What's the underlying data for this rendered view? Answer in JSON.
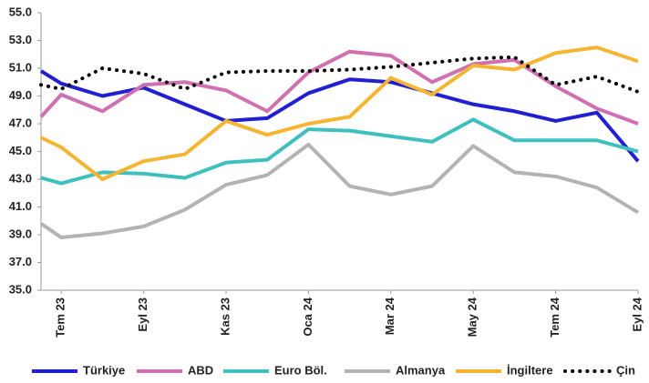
{
  "chart_data": {
    "type": "line",
    "categories": [
      null,
      "Tem 23",
      null,
      "Eyl 23",
      null,
      "Kas 23",
      null,
      "Oca 24",
      null,
      "Mar 24",
      null,
      "May 24",
      null,
      "Tem 24",
      null,
      "Eyl 24"
    ],
    "ylim": [
      35,
      55
    ],
    "yticks": [
      {
        "value": 35,
        "label": "35.0"
      },
      {
        "value": 37,
        "label": "37.0"
      },
      {
        "value": 39,
        "label": "39.0"
      },
      {
        "value": 41,
        "label": "41.0"
      },
      {
        "value": 43,
        "label": "43.0"
      },
      {
        "value": 45,
        "label": "45.0"
      },
      {
        "value": 47,
        "label": "47.0"
      },
      {
        "value": 49,
        "label": "49.0"
      },
      {
        "value": 51,
        "label": "51.0"
      },
      {
        "value": 53,
        "label": "53.0"
      },
      {
        "value": 55,
        "label": "55.0"
      }
    ],
    "legend": "bottom",
    "series": [
      {
        "name": "Türkiye",
        "color": "#2020d0",
        "style": "solid",
        "values": [
          50.8,
          49.9,
          49.0,
          49.6,
          48.4,
          47.2,
          47.4,
          49.2,
          50.2,
          50.0,
          49.2,
          48.4,
          47.9,
          47.2,
          47.8,
          44.3
        ]
      },
      {
        "name": "ABD",
        "color": "#d070b0",
        "style": "solid",
        "values": [
          47.5,
          49.1,
          47.9,
          49.8,
          50.0,
          49.4,
          47.9,
          50.7,
          52.2,
          51.9,
          50.0,
          51.3,
          51.6,
          49.7,
          48.1,
          47.0
        ]
      },
      {
        "name": "Euro Böl.",
        "color": "#40bfbf",
        "style": "solid",
        "values": [
          43.1,
          42.7,
          43.5,
          43.4,
          43.1,
          44.2,
          44.4,
          46.6,
          46.5,
          46.1,
          45.7,
          47.3,
          45.8,
          45.8,
          45.8,
          45.0
        ]
      },
      {
        "name": "Almanya",
        "color": "#b3b3b3",
        "style": "solid",
        "values": [
          39.8,
          38.8,
          39.1,
          39.6,
          40.8,
          42.6,
          43.3,
          45.5,
          42.5,
          41.9,
          42.5,
          45.4,
          43.5,
          43.2,
          42.4,
          40.6
        ]
      },
      {
        "name": "İngiltere",
        "color": "#f5b532",
        "style": "solid",
        "values": [
          46.0,
          45.3,
          43.0,
          44.3,
          44.8,
          47.2,
          46.2,
          47.0,
          47.5,
          50.3,
          49.1,
          51.2,
          50.9,
          52.1,
          52.5,
          51.5
        ]
      },
      {
        "name": "Çin",
        "color": "#000000",
        "style": "dotted",
        "values": [
          49.8,
          49.5,
          51.0,
          50.6,
          49.5,
          50.7,
          50.8,
          50.8,
          50.9,
          51.1,
          51.4,
          51.7,
          51.8,
          49.8,
          50.4,
          49.3
        ]
      }
    ]
  }
}
